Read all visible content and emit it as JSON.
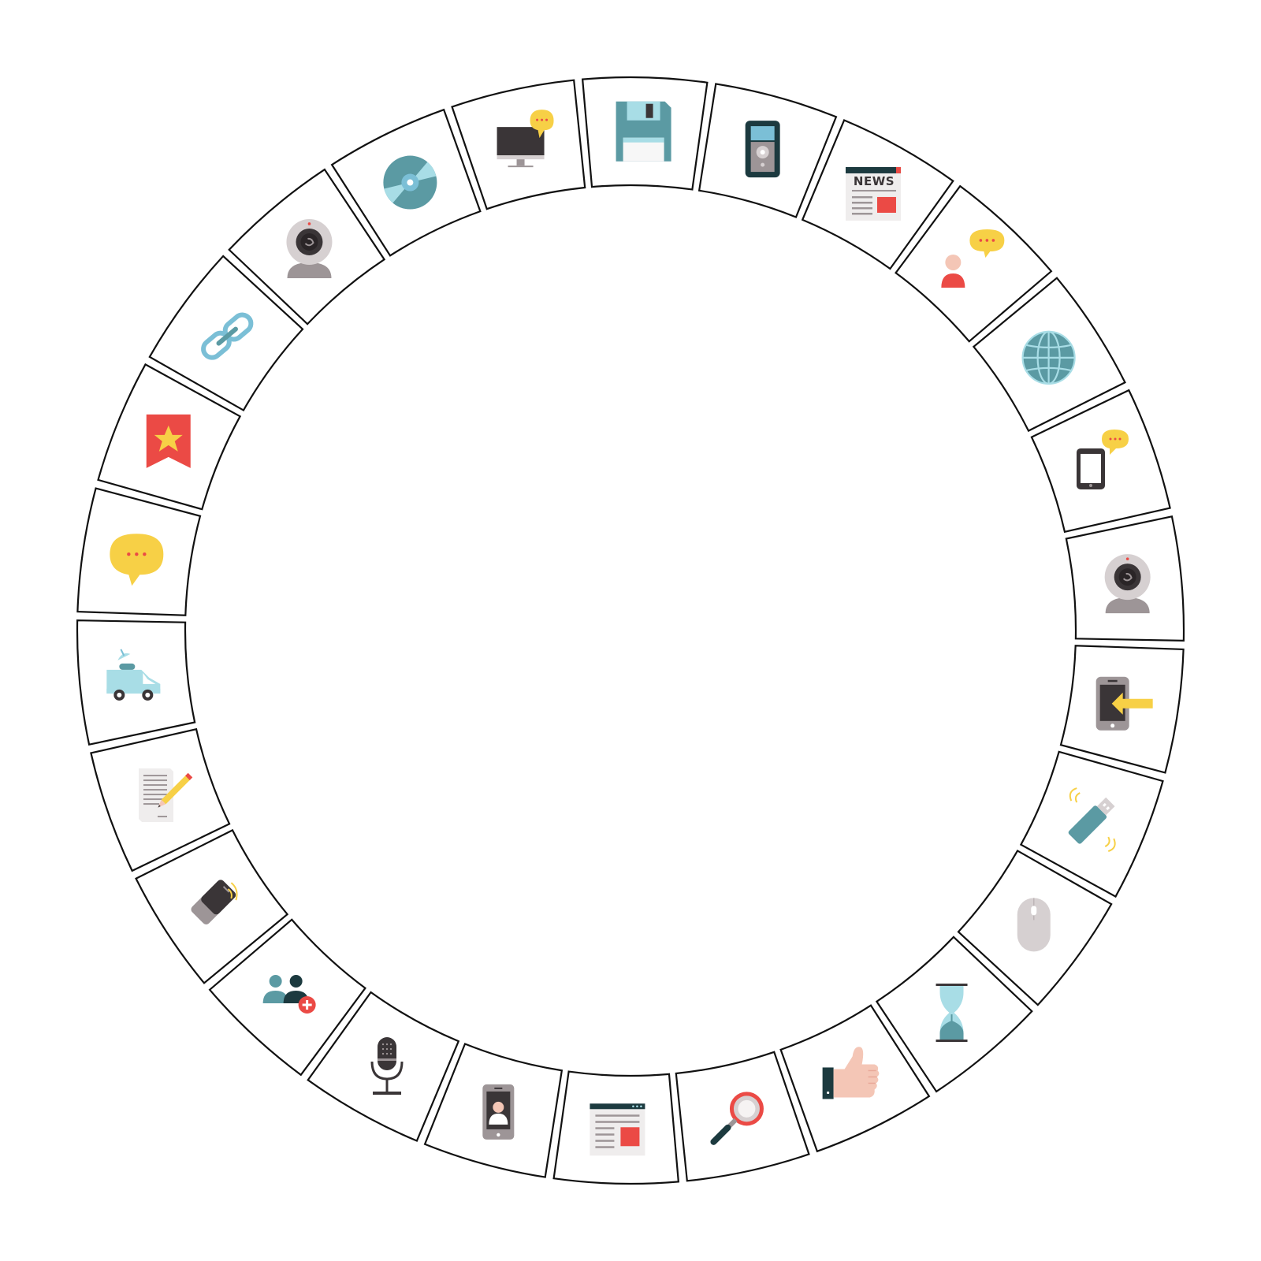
{
  "diagram": {
    "segments": [
      {
        "icon": "floppy-disk-icon"
      },
      {
        "icon": "voice-recorder-icon"
      },
      {
        "icon": "newspaper-icon",
        "text": "NEWS"
      },
      {
        "icon": "user-chat-icon"
      },
      {
        "icon": "globe-icon"
      },
      {
        "icon": "tablet-chat-icon"
      },
      {
        "icon": "webcam-icon"
      },
      {
        "icon": "phone-incoming-icon"
      },
      {
        "icon": "usb-wireless-icon"
      },
      {
        "icon": "computer-mouse-icon"
      },
      {
        "icon": "hourglass-icon"
      },
      {
        "icon": "thumbs-up-icon"
      },
      {
        "icon": "magnifier-icon"
      },
      {
        "icon": "web-page-icon"
      },
      {
        "icon": "phone-contact-icon"
      },
      {
        "icon": "microphone-icon"
      },
      {
        "icon": "add-user-icon"
      },
      {
        "icon": "phone-vibrating-icon"
      },
      {
        "icon": "document-edit-icon"
      },
      {
        "icon": "broadcast-van-icon"
      },
      {
        "icon": "speech-bubble-icon"
      },
      {
        "icon": "bookmark-star-icon"
      },
      {
        "icon": "chain-link-icon"
      },
      {
        "icon": "webcam-icon"
      },
      {
        "icon": "cd-disc-icon"
      },
      {
        "icon": "monitor-chat-icon"
      }
    ]
  },
  "colors": {
    "outline": "#111111",
    "dark": "#3a3537",
    "teal": "#5b9aa3",
    "light_teal": "#a8dde6",
    "sky": "#7bbfd6",
    "grey": "#9d9597",
    "light_grey": "#d6d0d1",
    "paper": "#efeded",
    "yellow": "#f7d046",
    "red": "#eb4a45",
    "skin": "#f4c6b6",
    "navy": "#1c3a3f"
  }
}
